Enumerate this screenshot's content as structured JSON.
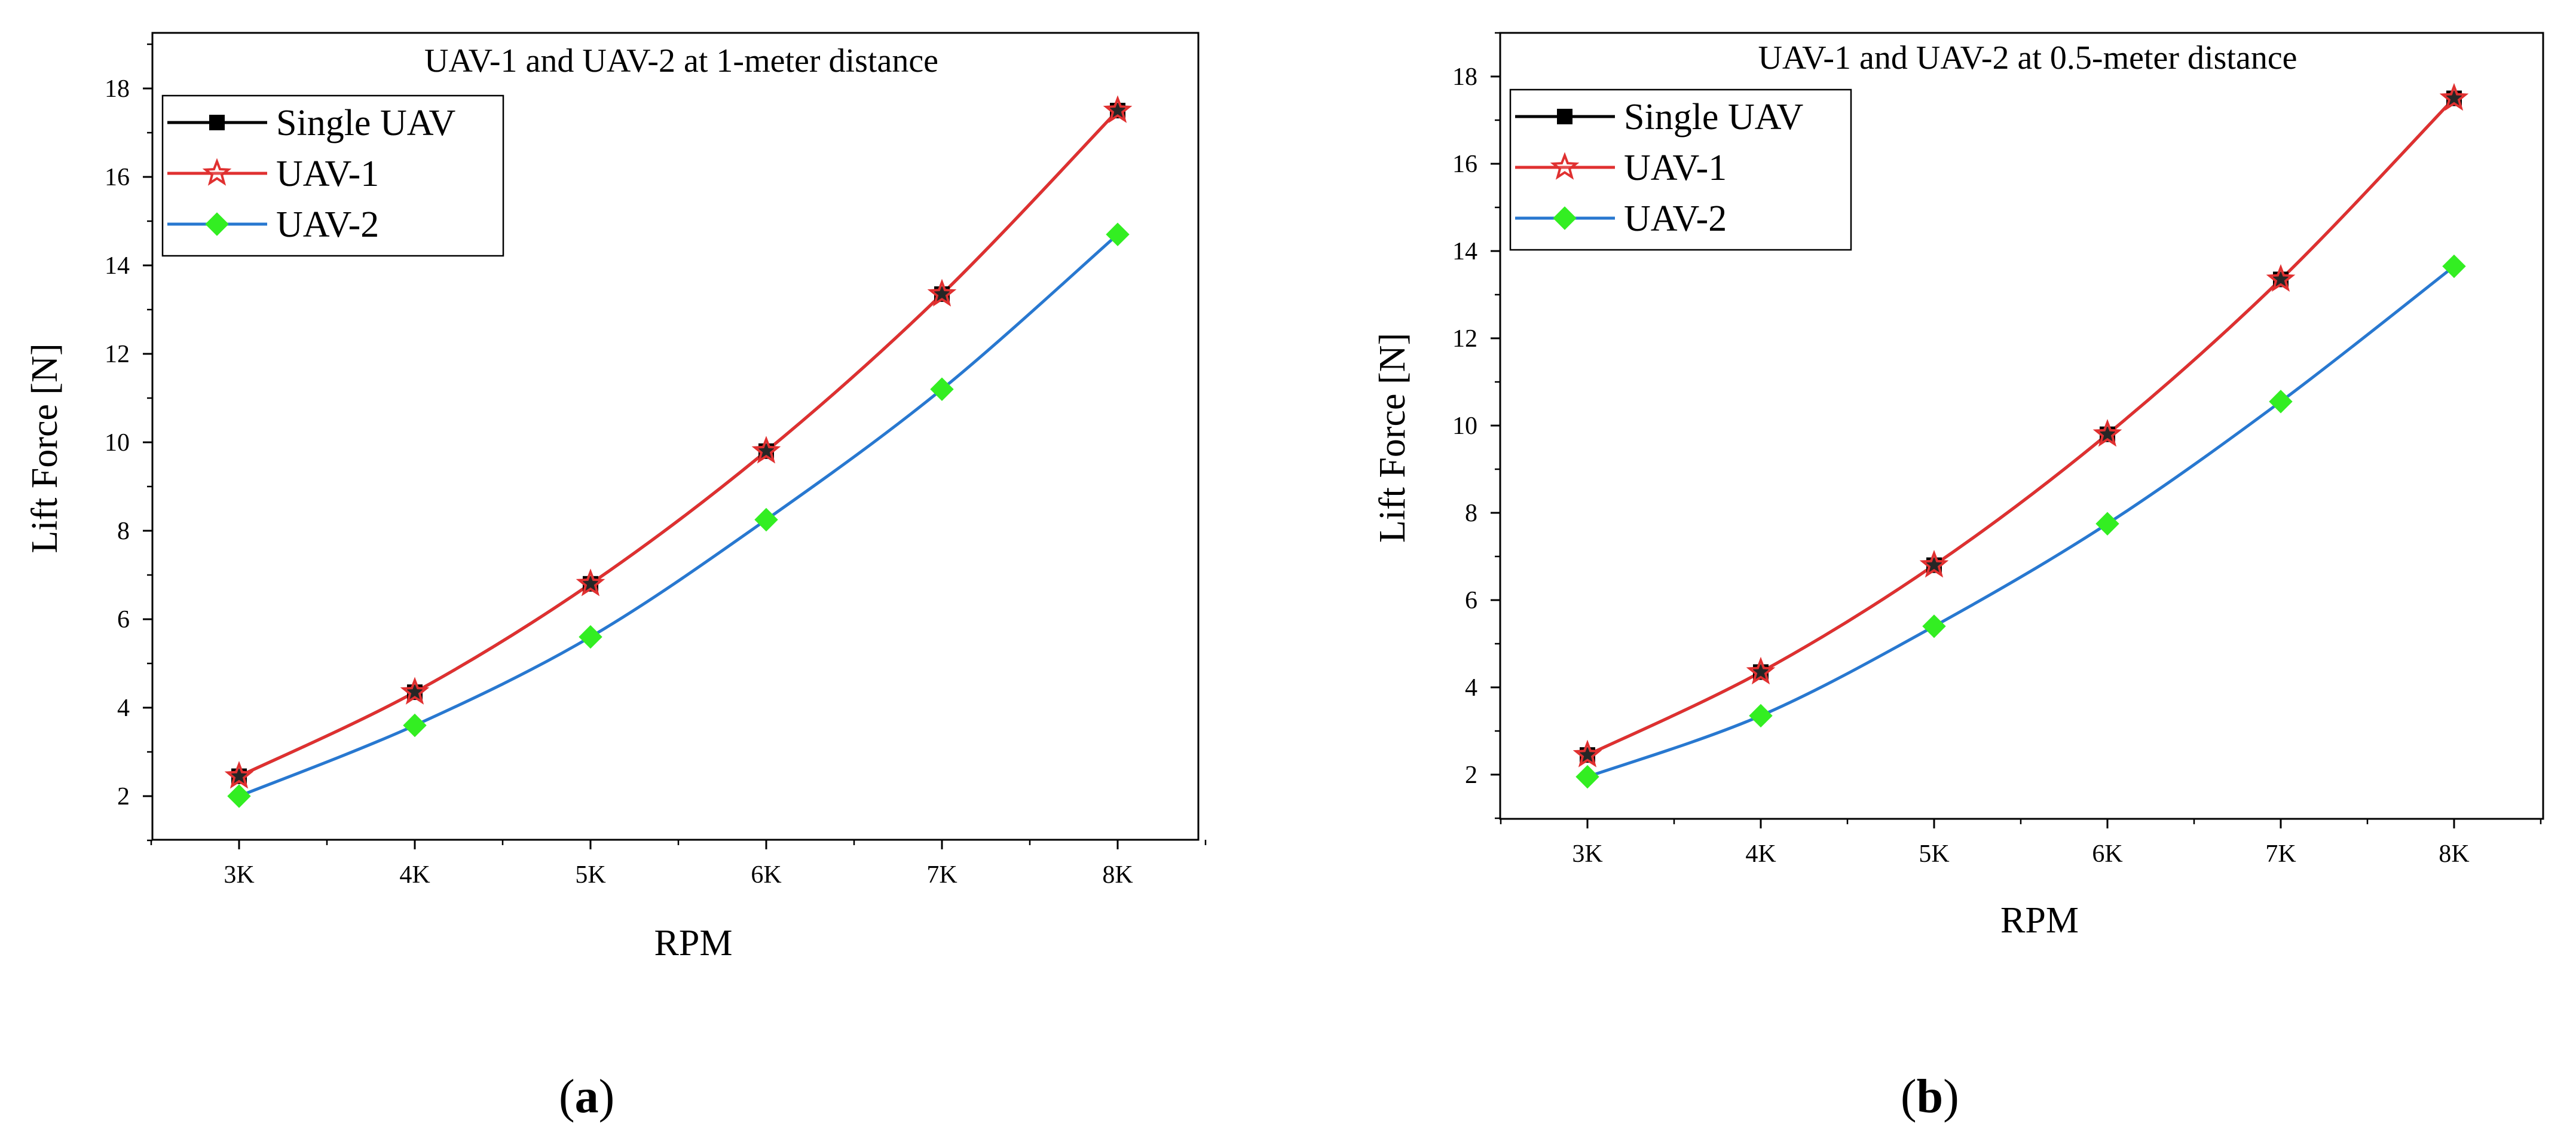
{
  "chart_data": [
    {
      "type": "line",
      "title": "UAV-1 and UAV-2 at 1-meter distance",
      "xlabel": "RPM",
      "ylabel": "Lift Force [N]",
      "categories": [
        "3K",
        "4K",
        "5K",
        "6K",
        "7K",
        "8K"
      ],
      "yticks": [
        "2",
        "4",
        "6",
        "8",
        "10",
        "12",
        "14",
        "16",
        "18"
      ],
      "ylim": [
        1,
        19
      ],
      "legend_position": "top-left",
      "grid": false,
      "series": [
        {
          "name": "Single UAV",
          "values": [
            2.45,
            4.35,
            6.8,
            9.8,
            13.35,
            17.5
          ],
          "color": "#000000",
          "marker": "square"
        },
        {
          "name": "UAV-1",
          "values": [
            2.45,
            4.35,
            6.8,
            9.8,
            13.35,
            17.5
          ],
          "color": "#e03030",
          "marker": "star"
        },
        {
          "name": "UAV-2",
          "values": [
            2.0,
            3.6,
            5.6,
            8.25,
            11.2,
            14.7
          ],
          "color": "#2878d0",
          "marker": "diamond"
        }
      ],
      "caption": "a"
    },
    {
      "type": "line",
      "title": "UAV-1 and UAV-2 at 0.5-meter distance",
      "xlabel": "RPM",
      "ylabel": "Lift Force [N]",
      "categories": [
        "3K",
        "4K",
        "5K",
        "6K",
        "7K",
        "8K"
      ],
      "yticks": [
        "2",
        "4",
        "6",
        "8",
        "10",
        "12",
        "14",
        "16",
        "18"
      ],
      "ylim": [
        1,
        19
      ],
      "legend_position": "top-left",
      "grid": false,
      "series": [
        {
          "name": "Single UAV",
          "values": [
            2.45,
            4.35,
            6.8,
            9.8,
            13.35,
            17.5
          ],
          "color": "#000000",
          "marker": "square"
        },
        {
          "name": "UAV-1",
          "values": [
            2.45,
            4.35,
            6.8,
            9.8,
            13.35,
            17.5
          ],
          "color": "#e03030",
          "marker": "star"
        },
        {
          "name": "UAV-2",
          "values": [
            1.95,
            3.35,
            5.4,
            7.75,
            10.55,
            13.65
          ],
          "color": "#2878d0",
          "marker": "diamond"
        }
      ],
      "caption": "b"
    }
  ],
  "style": {
    "uav2_marker_fill": "#33ee22"
  }
}
